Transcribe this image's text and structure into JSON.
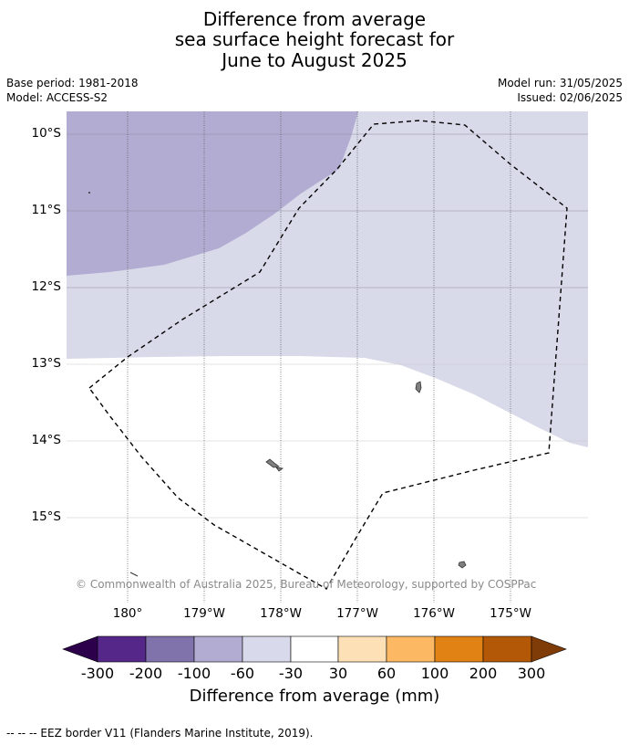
{
  "title": {
    "line1": "Difference from average",
    "line2": "sea surface height forecast for",
    "line3": "June to August 2025"
  },
  "meta": {
    "base_period": "Base period: 1981-2018",
    "model": "Model: ACCESS-S2",
    "model_run": "Model run: 31/05/2025",
    "issued": "Issued: 02/06/2025"
  },
  "map": {
    "lat_labels": [
      "10°S",
      "11°S",
      "12°S",
      "13°S",
      "14°S",
      "15°S"
    ],
    "lon_labels": [
      "180°",
      "179°W",
      "178°W",
      "177°W",
      "176°W",
      "175°W"
    ],
    "copyright": "© Commonwealth of Australia 2025, Bureau of Meteorology, supported by COSPPac",
    "fill_colors": {
      "band_-100_-60": "#b2abd2",
      "band_-60_-30": "#d8d9e9",
      "band_-30_30": "#ffffff"
    }
  },
  "colorbar": {
    "labels": [
      "-300",
      "-200",
      "-100",
      "-60",
      "-30",
      "30",
      "60",
      "100",
      "200",
      "300"
    ],
    "colors": [
      "#2d004b",
      "#542788",
      "#8073ac",
      "#b2abd2",
      "#d8daeb",
      "#ffffff",
      "#fee0b6",
      "#fdb863",
      "#e08214",
      "#b35806",
      "#7f3b08"
    ],
    "title": "Difference from average (mm)"
  },
  "footer": {
    "legend_text": "--  --  -- EEZ border V11 (Flanders Marine Institute, 2019)."
  }
}
